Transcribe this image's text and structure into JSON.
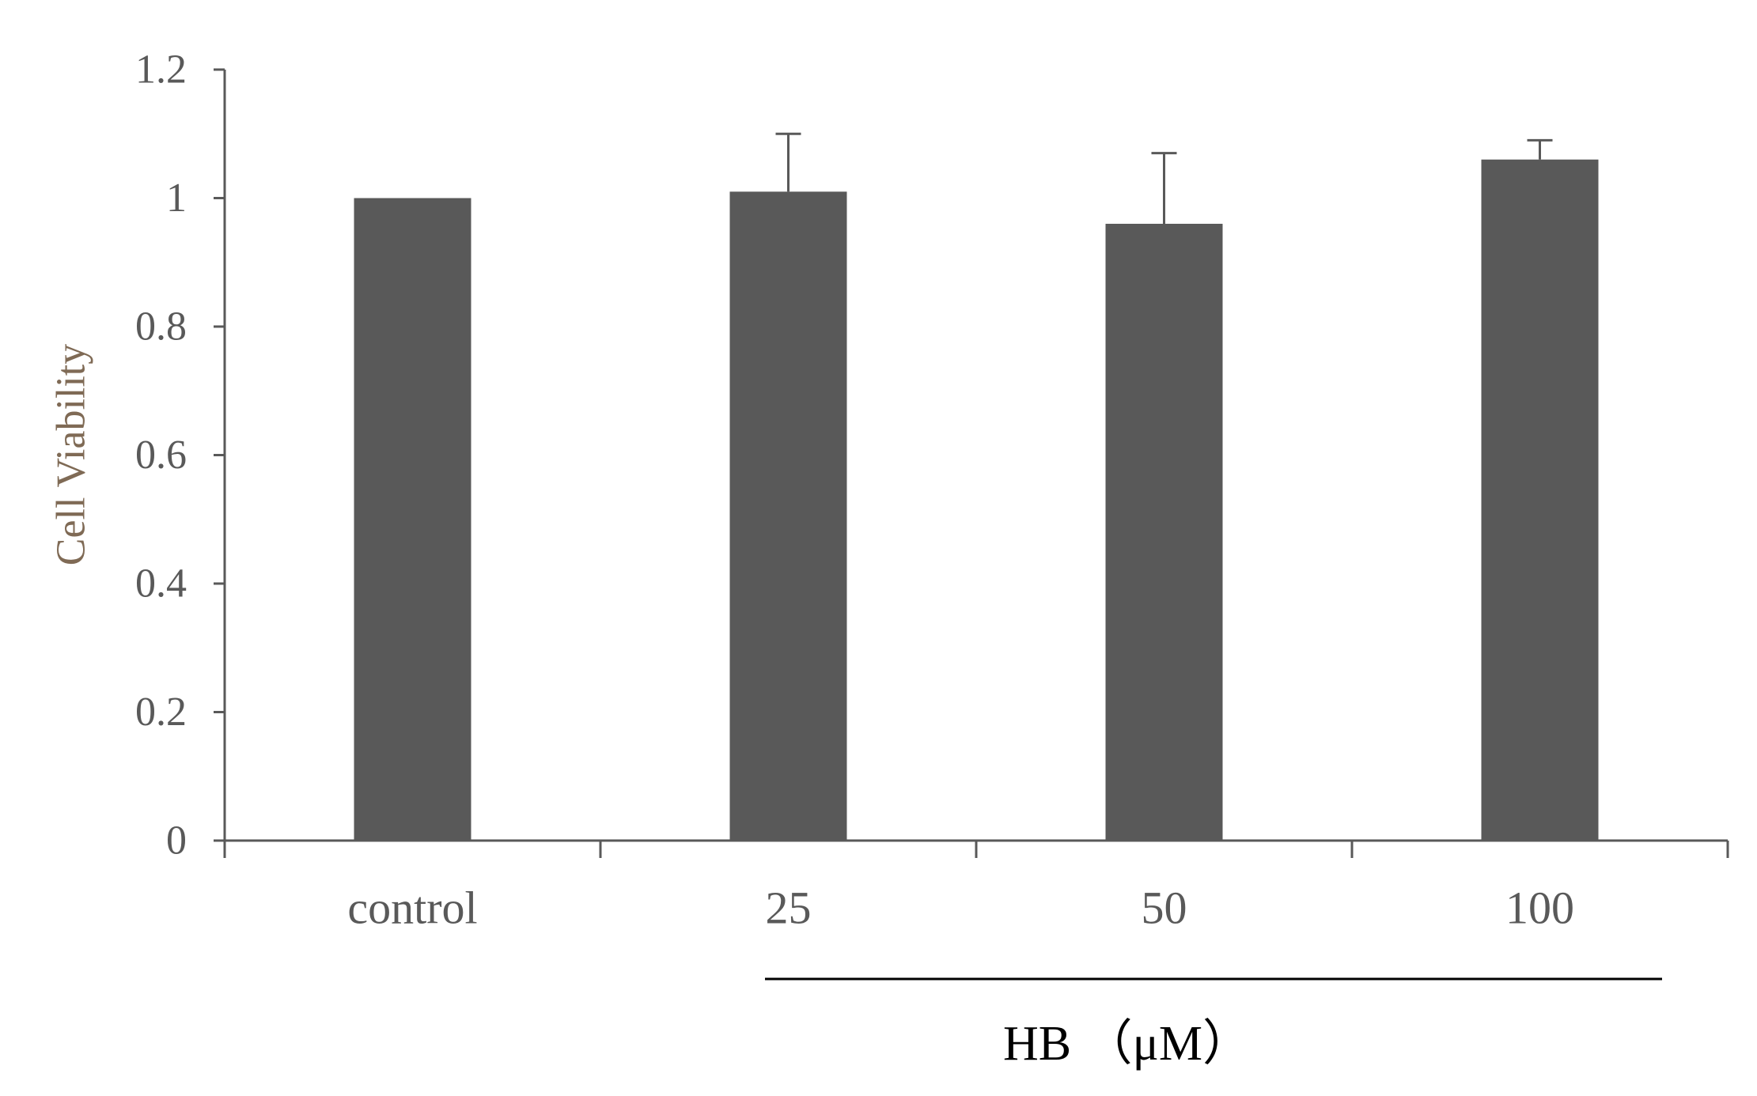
{
  "chart_data": {
    "type": "bar",
    "ylabel": "Cell Viability",
    "xlabel": "",
    "group_label": "HB （μM）",
    "categories": [
      "control",
      "25",
      "50",
      "100"
    ],
    "values": [
      1.0,
      1.01,
      0.96,
      1.06
    ],
    "errors": [
      0,
      0.09,
      0.11,
      0.03
    ],
    "ylim": [
      0,
      1.2
    ],
    "yticks": [
      "0",
      "0.2",
      "0.4",
      "0.6",
      "0.8",
      "1",
      "1.2"
    ],
    "grid": false,
    "legend": "none",
    "colors": {
      "bar": "#595959",
      "axis": "#595959",
      "tick_label": "#595959",
      "ylabel": "#7f6a55",
      "group_line": "#000000",
      "group_label": "#000000"
    }
  }
}
